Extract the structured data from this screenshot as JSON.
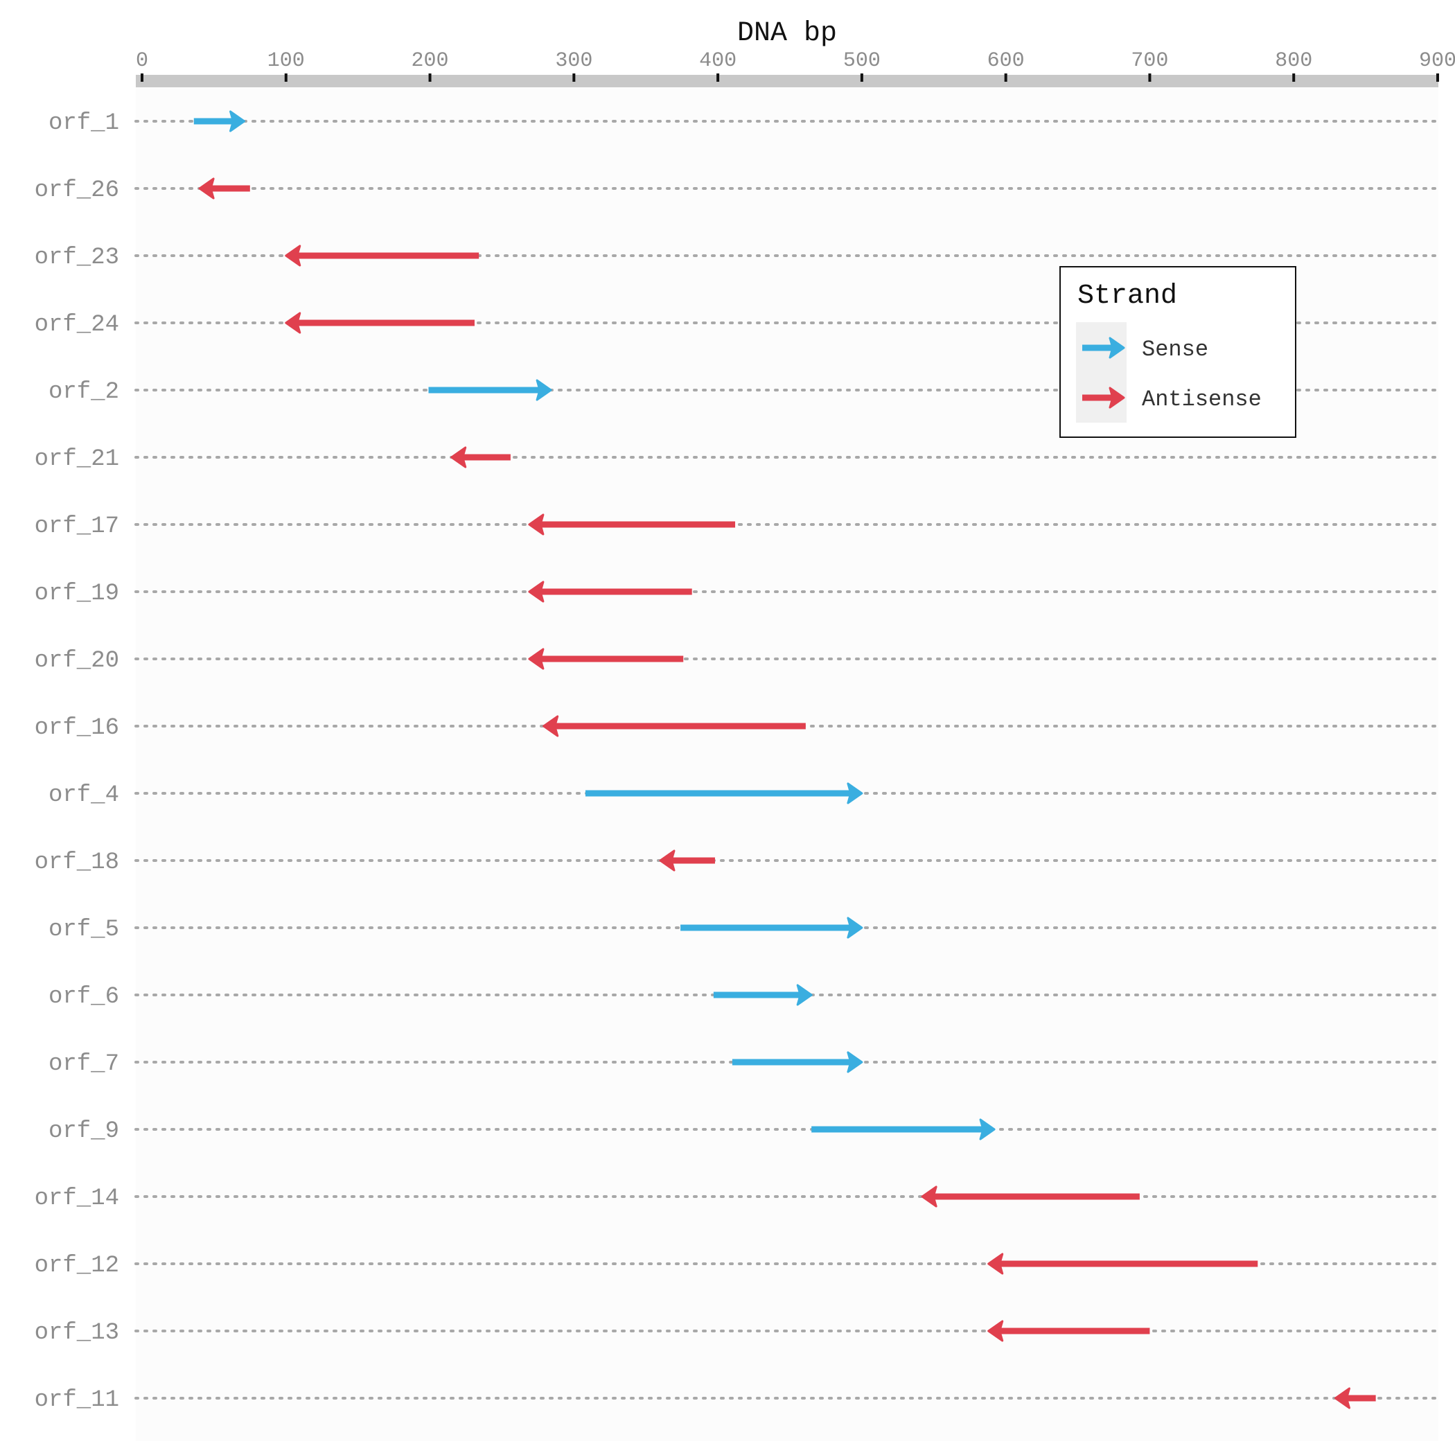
{
  "chart_data": {
    "type": "gene-arrow",
    "xlabel": "DNA bp",
    "xlim": [
      0,
      900
    ],
    "xticks": [
      0,
      100,
      200,
      300,
      400,
      500,
      600,
      700,
      800,
      900
    ],
    "xtick_labels": [
      "0",
      "100",
      "200",
      "300",
      "400",
      "500",
      "600",
      "700",
      "800",
      "900"
    ],
    "legend": {
      "title": "Strand",
      "position": "top-right",
      "entries": [
        {
          "label": "Sense",
          "color": "#3aaee0"
        },
        {
          "label": "Antisense",
          "color": "#e0404e"
        }
      ]
    },
    "rows": [
      {
        "name": "orf_1",
        "start": 36,
        "end": 71,
        "strand": "Sense"
      },
      {
        "name": "orf_26",
        "start": 75,
        "end": 40,
        "strand": "Antisense"
      },
      {
        "name": "orf_23",
        "start": 234,
        "end": 100,
        "strand": "Antisense"
      },
      {
        "name": "orf_24",
        "start": 231,
        "end": 100,
        "strand": "Antisense"
      },
      {
        "name": "orf_2",
        "start": 199,
        "end": 284,
        "strand": "Sense"
      },
      {
        "name": "orf_21",
        "start": 256,
        "end": 215,
        "strand": "Antisense"
      },
      {
        "name": "orf_17",
        "start": 412,
        "end": 269,
        "strand": "Antisense"
      },
      {
        "name": "orf_19",
        "start": 382,
        "end": 269,
        "strand": "Antisense"
      },
      {
        "name": "orf_20",
        "start": 376,
        "end": 269,
        "strand": "Antisense"
      },
      {
        "name": "orf_16",
        "start": 461,
        "end": 279,
        "strand": "Antisense"
      },
      {
        "name": "orf_4",
        "start": 308,
        "end": 500,
        "strand": "Sense"
      },
      {
        "name": "orf_18",
        "start": 398,
        "end": 360,
        "strand": "Antisense"
      },
      {
        "name": "orf_5",
        "start": 374,
        "end": 500,
        "strand": "Sense"
      },
      {
        "name": "orf_6",
        "start": 397,
        "end": 465,
        "strand": "Sense"
      },
      {
        "name": "orf_7",
        "start": 410,
        "end": 500,
        "strand": "Sense"
      },
      {
        "name": "orf_9",
        "start": 465,
        "end": 592,
        "strand": "Sense"
      },
      {
        "name": "orf_14",
        "start": 693,
        "end": 542,
        "strand": "Antisense"
      },
      {
        "name": "orf_12",
        "start": 775,
        "end": 588,
        "strand": "Antisense"
      },
      {
        "name": "orf_13",
        "start": 700,
        "end": 588,
        "strand": "Antisense"
      },
      {
        "name": "orf_11",
        "start": 857,
        "end": 829,
        "strand": "Antisense"
      }
    ]
  }
}
